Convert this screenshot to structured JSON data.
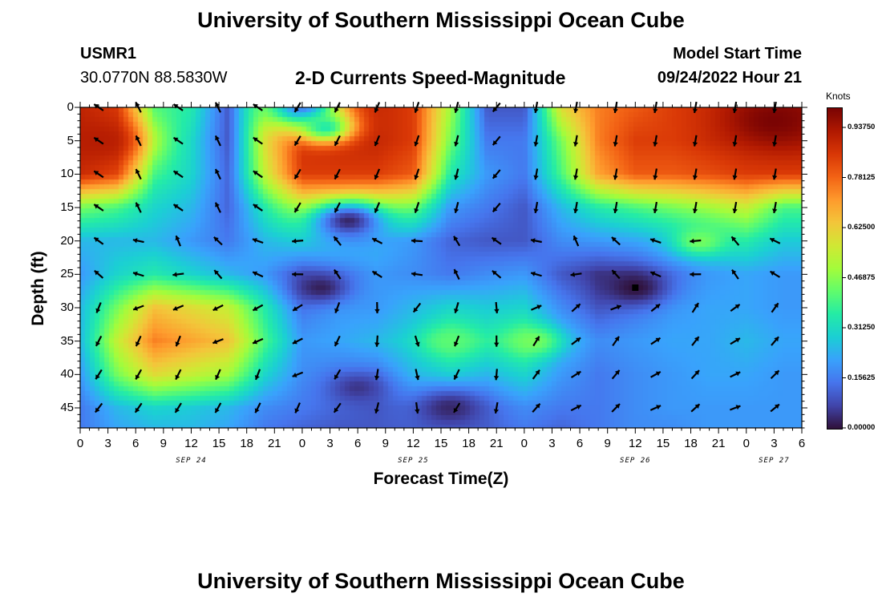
{
  "header": {
    "title": "University of Southern Mississippi Ocean Cube",
    "station_id": "USMR1",
    "station_coords": "30.0770N  88.5830W",
    "chart_title": "2-D Currents Speed-Magnitude",
    "model_label": "Model Start Time",
    "model_time": "09/24/2022 Hour 21",
    "footer_title": "University of Southern Mississippi Ocean Cube"
  },
  "colors": {
    "background": "#ffffff",
    "text": "#000000",
    "arrow": "#000000",
    "colormap": [
      "#30123b",
      "#4145ab",
      "#4675ed",
      "#39a2fc",
      "#1bcfd4",
      "#24eca6",
      "#61fc6c",
      "#a4fc3b",
      "#d1e834",
      "#f3c63a",
      "#fe9b2d",
      "#f36315",
      "#d93806",
      "#b11901",
      "#7a0403"
    ]
  },
  "chart_data": {
    "type": "heatmap",
    "title": "2-D Currents Speed-Magnitude",
    "xlabel": "Forecast Time(Z)",
    "ylabel": "Depth (ft)",
    "x_range_hours": [
      0,
      78
    ],
    "y_range_ft": [
      0,
      48
    ],
    "x_ticks": [
      {
        "h": 0,
        "label": "0"
      },
      {
        "h": 3,
        "label": "3"
      },
      {
        "h": 6,
        "label": "6"
      },
      {
        "h": 9,
        "label": "9"
      },
      {
        "h": 12,
        "label": "12"
      },
      {
        "h": 15,
        "label": "15"
      },
      {
        "h": 18,
        "label": "18"
      },
      {
        "h": 21,
        "label": "21"
      },
      {
        "h": 24,
        "label": "0"
      },
      {
        "h": 27,
        "label": "3"
      },
      {
        "h": 30,
        "label": "6"
      },
      {
        "h": 33,
        "label": "9"
      },
      {
        "h": 36,
        "label": "12"
      },
      {
        "h": 39,
        "label": "15"
      },
      {
        "h": 42,
        "label": "18"
      },
      {
        "h": 45,
        "label": "21"
      },
      {
        "h": 48,
        "label": "0"
      },
      {
        "h": 51,
        "label": "3"
      },
      {
        "h": 54,
        "label": "6"
      },
      {
        "h": 57,
        "label": "9"
      },
      {
        "h": 60,
        "label": "12"
      },
      {
        "h": 63,
        "label": "15"
      },
      {
        "h": 66,
        "label": "18"
      },
      {
        "h": 69,
        "label": "21"
      },
      {
        "h": 72,
        "label": "0"
      },
      {
        "h": 75,
        "label": "3"
      },
      {
        "h": 78,
        "label": "6"
      }
    ],
    "y_ticks": [
      {
        "v": 0,
        "label": "0"
      },
      {
        "v": 5,
        "label": "5"
      },
      {
        "v": 10,
        "label": "10"
      },
      {
        "v": 15,
        "label": "15"
      },
      {
        "v": 20,
        "label": "20"
      },
      {
        "v": 25,
        "label": "25"
      },
      {
        "v": 30,
        "label": "30"
      },
      {
        "v": 35,
        "label": "35"
      },
      {
        "v": 40,
        "label": "40"
      },
      {
        "v": 45,
        "label": "45"
      }
    ],
    "day_labels": [
      {
        "h": 12,
        "label": "SEP 24"
      },
      {
        "h": 36,
        "label": "SEP 25"
      },
      {
        "h": 60,
        "label": "SEP 26"
      },
      {
        "h": 75,
        "label": "SEP 27"
      }
    ],
    "colorbar": {
      "title": "Knots",
      "range": [
        0,
        1.0
      ],
      "ticks": [
        {
          "v": 0.0,
          "label": "0.00000"
        },
        {
          "v": 0.15625,
          "label": "0.15625"
        },
        {
          "v": 0.3125,
          "label": "0.31250"
        },
        {
          "v": 0.46875,
          "label": "0.46875"
        },
        {
          "v": 0.625,
          "label": "0.62500"
        },
        {
          "v": 0.78125,
          "label": "0.78125"
        },
        {
          "v": 0.9375,
          "label": "0.93750"
        }
      ]
    },
    "speed_field": {
      "description": "approximate current speed (knots) read from the color field",
      "x_hours": [
        0,
        4,
        8,
        12,
        16,
        20,
        24,
        28,
        32,
        36,
        40,
        44,
        48,
        52,
        56,
        60,
        64,
        68,
        72,
        76,
        78
      ],
      "depth_ft": [
        0,
        5,
        10,
        15,
        20,
        25,
        30,
        35,
        40,
        45,
        48
      ],
      "values": [
        [
          0.9,
          0.85,
          0.4,
          0.35,
          0.1,
          0.6,
          0.88,
          0.9,
          0.9,
          0.85,
          0.5,
          0.1,
          0.1,
          0.6,
          0.75,
          0.8,
          0.85,
          0.88,
          0.92,
          0.95,
          0.95
        ],
        [
          0.9,
          0.85,
          0.4,
          0.3,
          0.1,
          0.6,
          0.88,
          0.9,
          0.9,
          0.85,
          0.45,
          0.15,
          0.15,
          0.45,
          0.75,
          0.85,
          0.85,
          0.88,
          0.9,
          0.92,
          0.92
        ],
        [
          0.88,
          0.82,
          0.38,
          0.3,
          0.12,
          0.55,
          0.85,
          0.85,
          0.85,
          0.8,
          0.35,
          0.2,
          0.15,
          0.4,
          0.7,
          0.8,
          0.8,
          0.82,
          0.85,
          0.85,
          0.85
        ],
        [
          0.45,
          0.4,
          0.3,
          0.25,
          0.12,
          0.35,
          0.55,
          0.6,
          0.55,
          0.45,
          0.2,
          0.15,
          0.1,
          0.25,
          0.35,
          0.4,
          0.45,
          0.5,
          0.55,
          0.4,
          0.4
        ],
        [
          0.25,
          0.25,
          0.25,
          0.2,
          0.15,
          0.25,
          0.3,
          0.28,
          0.25,
          0.2,
          0.12,
          0.1,
          0.1,
          0.18,
          0.2,
          0.22,
          0.25,
          0.3,
          0.35,
          0.28,
          0.28
        ],
        [
          0.2,
          0.3,
          0.35,
          0.3,
          0.25,
          0.2,
          0.1,
          0.15,
          0.2,
          0.18,
          0.15,
          0.18,
          0.2,
          0.1,
          0.05,
          0.08,
          0.15,
          0.2,
          0.22,
          0.2,
          0.2
        ],
        [
          0.25,
          0.45,
          0.65,
          0.6,
          0.55,
          0.35,
          0.15,
          0.2,
          0.2,
          0.25,
          0.3,
          0.28,
          0.3,
          0.18,
          0.1,
          0.15,
          0.2,
          0.22,
          0.22,
          0.2,
          0.2
        ],
        [
          0.25,
          0.55,
          0.75,
          0.7,
          0.65,
          0.4,
          0.2,
          0.22,
          0.25,
          0.3,
          0.4,
          0.35,
          0.4,
          0.25,
          0.18,
          0.2,
          0.22,
          0.22,
          0.25,
          0.22,
          0.22
        ],
        [
          0.2,
          0.45,
          0.6,
          0.55,
          0.5,
          0.3,
          0.18,
          0.15,
          0.15,
          0.25,
          0.3,
          0.25,
          0.3,
          0.2,
          0.15,
          0.18,
          0.2,
          0.22,
          0.22,
          0.2,
          0.2
        ],
        [
          0.15,
          0.25,
          0.3,
          0.28,
          0.25,
          0.18,
          0.15,
          0.12,
          0.1,
          0.15,
          0.15,
          0.15,
          0.18,
          0.15,
          0.15,
          0.18,
          0.2,
          0.2,
          0.2,
          0.2,
          0.2
        ],
        [
          0.15,
          0.22,
          0.25,
          0.25,
          0.22,
          0.15,
          0.12,
          0.1,
          0.1,
          0.12,
          0.12,
          0.12,
          0.15,
          0.12,
          0.15,
          0.18,
          0.18,
          0.2,
          0.2,
          0.2,
          0.2
        ]
      ]
    },
    "hotspots": [
      {
        "h": 2,
        "d": 5,
        "v": 0.92,
        "s": 5
      },
      {
        "h": 24,
        "d": 0,
        "v": 0.15,
        "s": 4
      },
      {
        "h": 29,
        "d": 17,
        "v": 0.03,
        "s": 4
      },
      {
        "h": 26.5,
        "d": 3,
        "v": 0.35,
        "s": 3
      },
      {
        "h": 60,
        "d": 27,
        "v": 0.0,
        "s": 3.5
      },
      {
        "h": 26,
        "d": 27,
        "v": 0.02,
        "s": 3
      },
      {
        "h": 40,
        "d": 35,
        "v": 0.42,
        "s": 3
      },
      {
        "h": 49,
        "d": 35,
        "v": 0.45,
        "s": 3
      },
      {
        "h": 40,
        "d": 45,
        "v": 0.03,
        "s": 4
      },
      {
        "h": 30,
        "d": 42,
        "v": 0.05,
        "s": 3
      },
      {
        "h": 75,
        "d": 2,
        "v": 1.0,
        "s": 5
      },
      {
        "h": 67,
        "d": 20,
        "v": 0.45,
        "s": 3
      }
    ],
    "marker": {
      "h": 60,
      "d": 27
    }
  }
}
